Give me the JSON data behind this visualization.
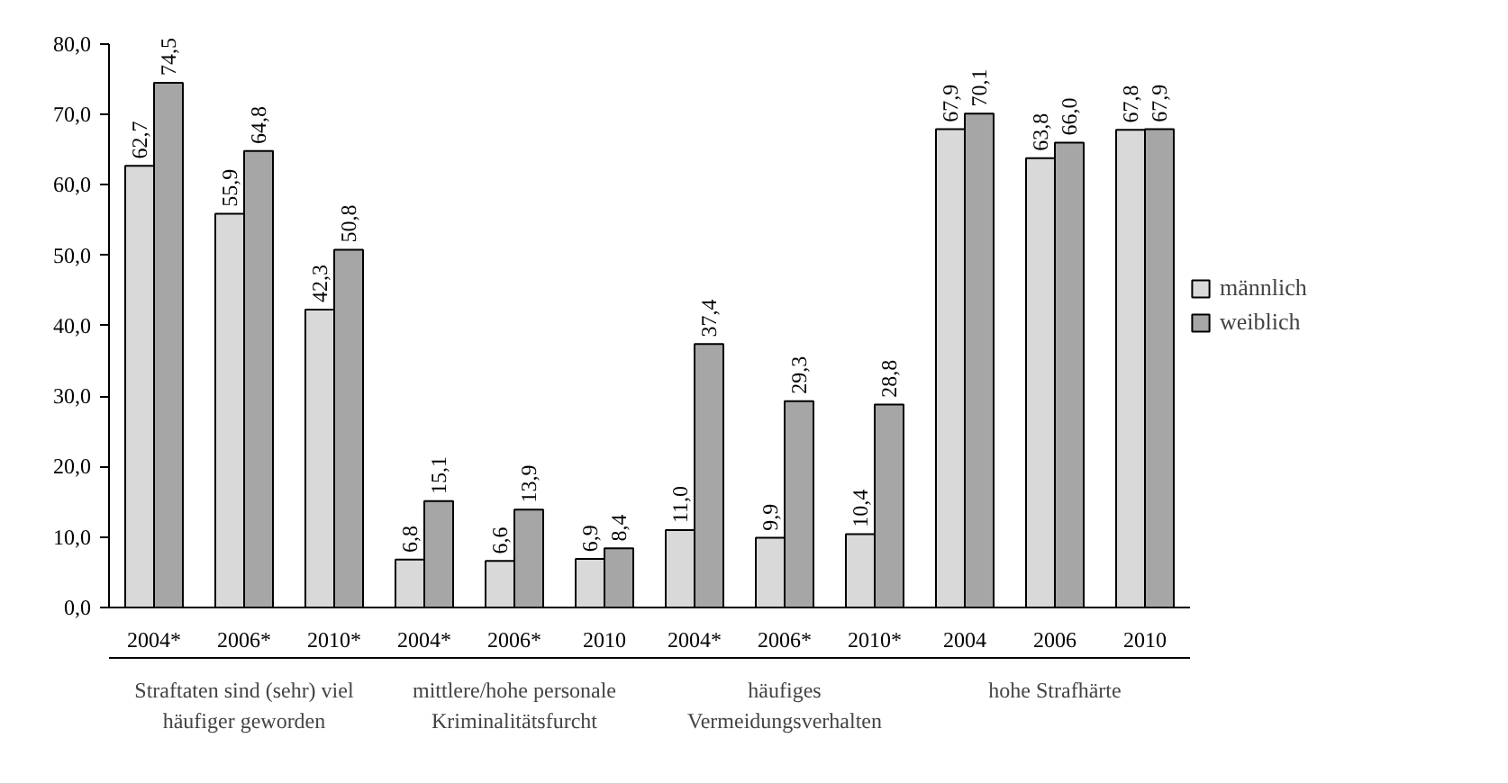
{
  "chart_data": {
    "type": "bar",
    "categories": [
      "2004*",
      "2006*",
      "2010*",
      "2004*",
      "2006*",
      "2010",
      "2004*",
      "2006*",
      "2010*",
      "2004",
      "2006",
      "2010"
    ],
    "series": [
      {
        "name": "männlich",
        "color": "#d9d9d9",
        "values": [
          62.7,
          55.9,
          42.3,
          6.8,
          6.6,
          6.9,
          11.0,
          9.9,
          10.4,
          67.9,
          63.8,
          67.8
        ],
        "value_labels": [
          "62,7",
          "55,9",
          "42,3",
          "6,8",
          "6,6",
          "6,9",
          "11,0",
          "9,9",
          "10,4",
          "67,9",
          "63,8",
          "67,8"
        ]
      },
      {
        "name": "weiblich",
        "color": "#a6a6a6",
        "values": [
          74.5,
          64.8,
          50.8,
          15.1,
          13.9,
          8.4,
          37.4,
          29.3,
          28.8,
          70.1,
          66.0,
          67.9
        ],
        "value_labels": [
          "74,5",
          "64,8",
          "50,8",
          "15,1",
          "13,9",
          "8,4",
          "37,4",
          "29,3",
          "28,8",
          "70,1",
          "66,0",
          "67,9"
        ]
      }
    ],
    "annotations": [
      "Straftaten sind (sehr) viel\nhäufiger geworden",
      "mittlere/hohe personale\nKriminalitätsfurcht",
      "häufiges\nVermeidungsverhalten",
      "hohe Strafhärte"
    ],
    "ylim": [
      0,
      80
    ],
    "yticks": [
      {
        "value": 0,
        "label": "0,0"
      },
      {
        "value": 10,
        "label": "10,0"
      },
      {
        "value": 20,
        "label": "20,0"
      },
      {
        "value": 30,
        "label": "30,0"
      },
      {
        "value": 40,
        "label": "40,0"
      },
      {
        "value": 50,
        "label": "50,0"
      },
      {
        "value": 60,
        "label": "60,0"
      },
      {
        "value": 70,
        "label": "70,0"
      },
      {
        "value": 80,
        "label": "80,0"
      }
    ],
    "grid": false,
    "legend": "right"
  }
}
